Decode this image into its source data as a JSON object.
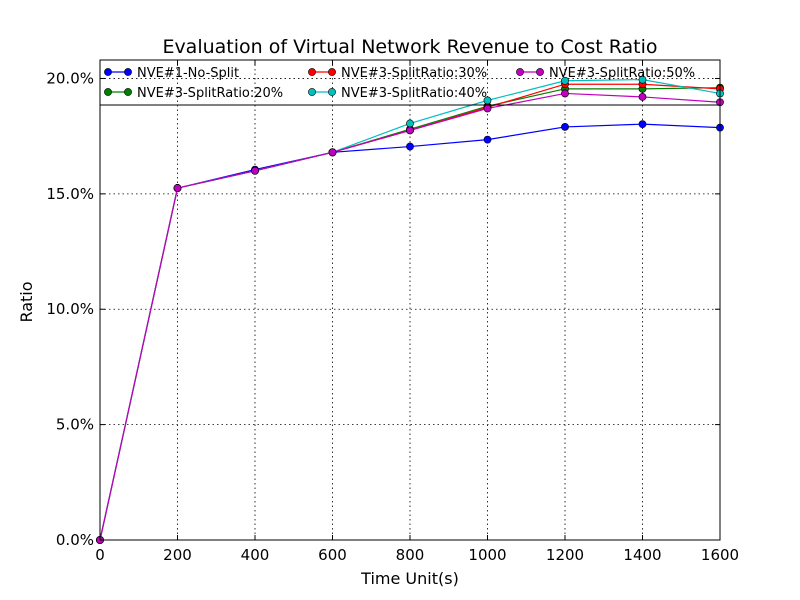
{
  "chart_data": {
    "type": "line",
    "title": "Evaluation of Virtual Network Revenue to Cost Ratio",
    "xlabel": "Time Unit(s)",
    "ylabel": "Ratio",
    "xlim": [
      0,
      1600
    ],
    "ylim": [
      0,
      0.208
    ],
    "x_ticks": [
      0,
      200,
      400,
      600,
      800,
      1000,
      1200,
      1400,
      1600
    ],
    "x_tick_labels": [
      "0",
      "200",
      "400",
      "600",
      "800",
      "1000",
      "1200",
      "1400",
      "1600"
    ],
    "y_ticks": [
      0,
      0.05,
      0.1,
      0.15,
      0.2
    ],
    "y_tick_labels": [
      "0.0%",
      "5.0%",
      "10.0%",
      "15.0%",
      "20.0%"
    ],
    "grid": true,
    "legend_position": "top",
    "x": [
      0,
      200,
      400,
      600,
      800,
      1000,
      1200,
      1400,
      1600
    ],
    "series": [
      {
        "name": "NVE#1-No-Split",
        "color": "#0000ff",
        "values": [
          0.0,
          0.1525,
          0.1605,
          0.168,
          0.1705,
          0.1735,
          0.179,
          0.1802,
          0.1787
        ]
      },
      {
        "name": "NVE#3-SplitRatio:20%",
        "color": "#008000",
        "values": [
          0.0,
          0.1525,
          0.16,
          0.168,
          0.178,
          0.188,
          0.1955,
          0.1955,
          0.196
        ]
      },
      {
        "name": "NVE#3-SplitRatio:30%",
        "color": "#ff0000",
        "values": [
          0.0,
          0.1525,
          0.16,
          0.168,
          0.1775,
          0.1875,
          0.1975,
          0.1975,
          0.1955
        ]
      },
      {
        "name": "NVE#3-SplitRatio:40%",
        "color": "#00bfbf",
        "values": [
          0.0,
          0.1525,
          0.16,
          0.168,
          0.1805,
          0.1905,
          0.199,
          0.1995,
          0.1935
        ]
      },
      {
        "name": "NVE#3-SplitRatio:50%",
        "color": "#bf00bf",
        "values": [
          0.0,
          0.1525,
          0.16,
          0.168,
          0.1775,
          0.187,
          0.1935,
          0.192,
          0.1897
        ]
      }
    ],
    "legend_columns": [
      [
        0,
        1
      ],
      [
        2,
        3
      ],
      [
        4
      ]
    ]
  }
}
